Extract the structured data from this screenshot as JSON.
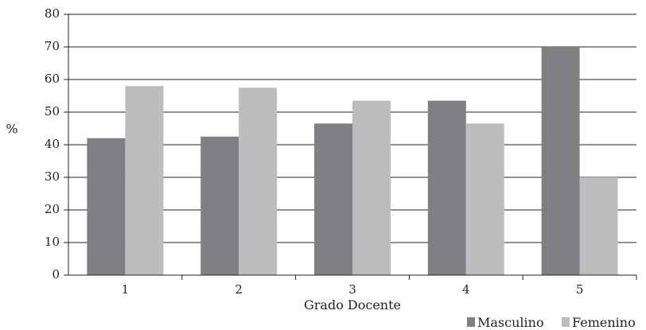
{
  "chart_data": {
    "type": "bar",
    "categories": [
      "1",
      "2",
      "3",
      "4",
      "5"
    ],
    "series": [
      {
        "name": "Masculino",
        "values": [
          42,
          42.5,
          46.5,
          53.5,
          70
        ],
        "color": "#808084"
      },
      {
        "name": "Femenino",
        "values": [
          58,
          57.5,
          53.5,
          46.5,
          30
        ],
        "color": "#bdbdc0"
      }
    ],
    "title": "",
    "xlabel": "Grado Docente",
    "ylabel": "%",
    "ylim": [
      0,
      80
    ],
    "yticks": [
      "0",
      "10",
      "20",
      "30",
      "40",
      "50",
      "60",
      "70",
      "80"
    ],
    "grid": true,
    "legend_position": "bottom-right"
  }
}
